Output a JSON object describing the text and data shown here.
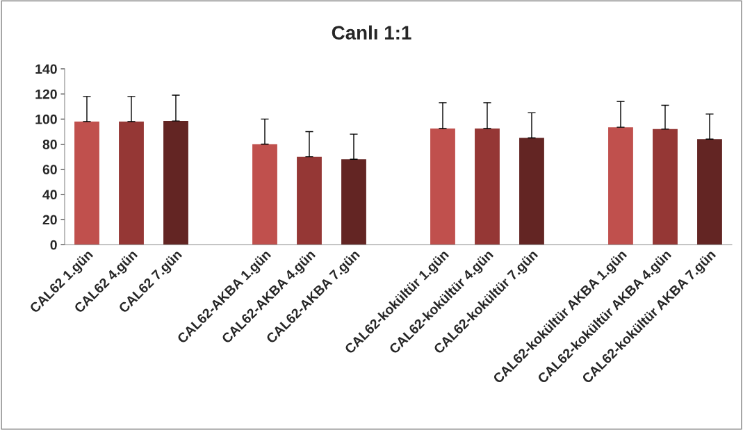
{
  "chart_data": {
    "type": "bar",
    "title": "Canlı 1:1",
    "categories": [
      "CAL62 1.gün",
      "CAL62 4.gün",
      "CAL62 7.gün",
      null,
      "CAL62-AKBA 1.gün",
      "CAL62-AKBA 4.gün",
      "CAL62-AKBA 7.gün",
      null,
      "CAL62-kokültür 1.gün",
      "CAL62-kokültür 4.gün",
      "CAL62-kokültür 7.gün",
      null,
      "CAL62-kokültür AKBA 1.gün",
      "CAL62-kokültür AKBA 4.gün",
      "CAL62-kokültür AKBA 7.gün"
    ],
    "values": [
      98,
      98,
      98.5,
      null,
      80,
      70,
      68,
      null,
      92.5,
      92.5,
      85,
      null,
      93.5,
      92,
      84
    ],
    "errors": [
      [
        98,
        118
      ],
      [
        98,
        118
      ],
      [
        98.5,
        119
      ],
      null,
      [
        80,
        100
      ],
      [
        70,
        90
      ],
      [
        68,
        88
      ],
      null,
      [
        92.5,
        113
      ],
      [
        92.5,
        113
      ],
      [
        85,
        105
      ],
      null,
      [
        93.5,
        114
      ],
      [
        92,
        111
      ],
      [
        84,
        104
      ]
    ],
    "colors": [
      "#c0504d",
      "#953735",
      "#632523",
      "#ffffff",
      "#c0504d",
      "#953735",
      "#632523",
      "#ffffff",
      "#c0504d",
      "#953735",
      "#632523",
      "#ffffff",
      "#c0504d",
      "#953735",
      "#632523"
    ],
    "ylim": [
      0,
      140
    ],
    "yticks": [
      0,
      20,
      40,
      60,
      80,
      100,
      120,
      140
    ],
    "grid": false,
    "legend": false
  }
}
